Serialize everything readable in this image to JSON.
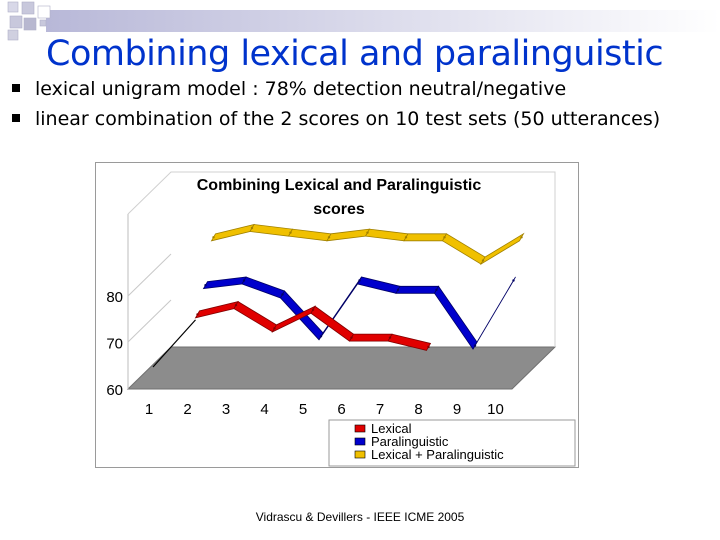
{
  "slide": {
    "title": "Combining lexical and paralinguistic",
    "bullets": [
      "lexical unigram model : 78% detection neutral/negative",
      "linear combination of the 2 scores on 10 test sets (50 utterances)"
    ],
    "footer": "Vidrascu &  Devillers - IEEE ICME 2005"
  },
  "chart_data": {
    "type": "line",
    "title": "Combining Lexical and Paralinguistic scores",
    "xlabel": "",
    "ylabel": "",
    "categories": [
      "1",
      "2",
      "3",
      "4",
      "5",
      "6",
      "7",
      "8",
      "9",
      "10"
    ],
    "y_ticks": [
      "60",
      "70",
      "80"
    ],
    "ylim": [
      60,
      90
    ],
    "series": [
      {
        "name": "Lexical",
        "color": "#e00000",
        "values": [
          null,
          74,
          76,
          71,
          75,
          69,
          69,
          67,
          null,
          null
        ]
      },
      {
        "name": "Paralinguistic",
        "color": "#0000cc",
        "values": [
          null,
          79,
          80,
          77,
          68,
          80,
          78,
          78,
          66,
          80
        ]
      },
      {
        "name": "Lexical + Paralinguistic",
        "color": "#f0c000",
        "values": [
          null,
          88,
          90,
          89,
          88,
          89,
          88,
          88,
          83,
          88
        ]
      }
    ],
    "legend_position": "bottom-right",
    "grid": false
  }
}
